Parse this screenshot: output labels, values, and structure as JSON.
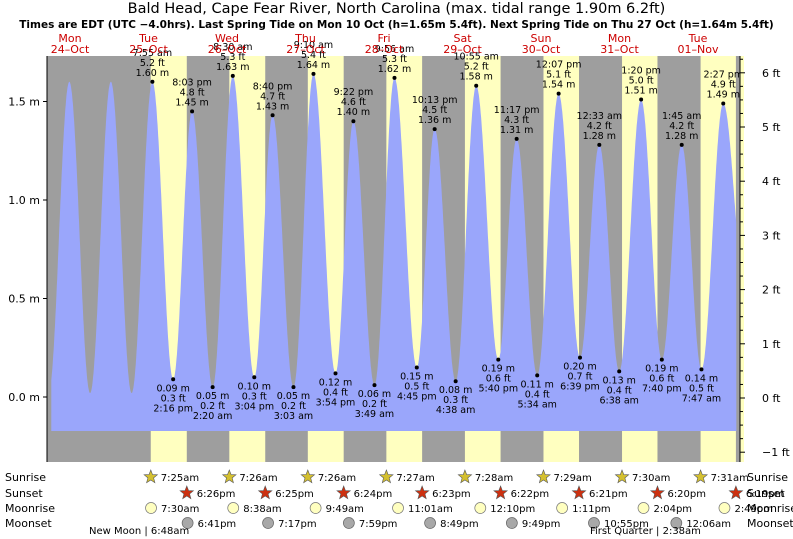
{
  "title": "Bald Head, Cape Fear River, North Carolina (max. tidal range 1.90m 6.2ft)",
  "subtitle": "Times are EDT (UTC −4.0hrs). Last Spring Tide on Mon 10 Oct (h=1.65m 5.4ft). Next Spring Tide on Thu 27 Oct (h=1.64m 5.4ft)",
  "colors": {
    "water": "#9aa6fb",
    "day": "#ffffc0",
    "night": "#9e9e9e",
    "day_header": "#cc0000",
    "sun_icon": "#d4c030",
    "sunset_icon": "#cc3010",
    "moonrise_icon": "#ffffc0",
    "moonset_icon": "#a8a8a8"
  },
  "chart_data": {
    "type": "area",
    "y_axis_left": {
      "unit": "m",
      "ylim": [
        -0.25,
        1.85
      ],
      "ticks": [
        "1.5 m",
        "1.0 m",
        "0.5 m",
        "0.0 m"
      ],
      "tick_values": [
        1.5,
        1.0,
        0.5,
        0.0
      ]
    },
    "y_axis_right": {
      "unit": "ft",
      "ticks": [
        "6 ft",
        "5 ft",
        "4 ft",
        "3 ft",
        "2 ft",
        "1 ft",
        "0 ft",
        "−1 ft"
      ],
      "tick_values": [
        6,
        5,
        4,
        3,
        2,
        1,
        0,
        -1
      ]
    },
    "days": [
      {
        "dow": "Mon",
        "date": "24–Oct"
      },
      {
        "dow": "Tue",
        "date": "25–Oct"
      },
      {
        "dow": "Wed",
        "date": "26–Oct"
      },
      {
        "dow": "Thu",
        "date": "27–Oct"
      },
      {
        "dow": "Fri",
        "date": "28–Oct"
      },
      {
        "dow": "Sat",
        "date": "29–Oct"
      },
      {
        "dow": "Sun",
        "date": "30–Oct"
      },
      {
        "dow": "Mon",
        "date": "31–Oct"
      },
      {
        "dow": "Tue",
        "date": "01–Nov"
      }
    ],
    "tides": [
      {
        "kind": "high",
        "time": "7:55 am",
        "ft": "5.2 ft",
        "m": "1.60 m",
        "h": 1.6
      },
      {
        "kind": "low",
        "time": "2:16 pm",
        "ft": "0.3 ft",
        "m": "0.09 m",
        "h": 0.09
      },
      {
        "kind": "high",
        "time": "8:03 pm",
        "ft": "4.8 ft",
        "m": "1.45 m",
        "h": 1.45
      },
      {
        "kind": "low",
        "time": "2:20 am",
        "ft": "0.2 ft",
        "m": "0.05 m",
        "h": 0.05
      },
      {
        "kind": "high",
        "time": "8:30 am",
        "ft": "5.3 ft",
        "m": "1.63 m",
        "h": 1.63
      },
      {
        "kind": "low",
        "time": "3:04 pm",
        "ft": "0.3 ft",
        "m": "0.10 m",
        "h": 0.1
      },
      {
        "kind": "high",
        "time": "8:40 pm",
        "ft": "4.7 ft",
        "m": "1.43 m",
        "h": 1.43
      },
      {
        "kind": "low",
        "time": "3:03 am",
        "ft": "0.2 ft",
        "m": "0.05 m",
        "h": 0.05
      },
      {
        "kind": "high",
        "time": "9:10 am",
        "ft": "5.4 ft",
        "m": "1.64 m",
        "h": 1.64
      },
      {
        "kind": "low",
        "time": "3:54 pm",
        "ft": "0.4 ft",
        "m": "0.12 m",
        "h": 0.12
      },
      {
        "kind": "high",
        "time": "9:22 pm",
        "ft": "4.6 ft",
        "m": "1.40 m",
        "h": 1.4
      },
      {
        "kind": "low",
        "time": "3:49 am",
        "ft": "0.2 ft",
        "m": "0.06 m",
        "h": 0.06
      },
      {
        "kind": "high",
        "time": "9:56 am",
        "ft": "5.3 ft",
        "m": "1.62 m",
        "h": 1.62
      },
      {
        "kind": "low",
        "time": "4:45 pm",
        "ft": "0.5 ft",
        "m": "0.15 m",
        "h": 0.15
      },
      {
        "kind": "high",
        "time": "10:13 pm",
        "ft": "4.5 ft",
        "m": "1.36 m",
        "h": 1.36
      },
      {
        "kind": "low",
        "time": "4:38 am",
        "ft": "0.3 ft",
        "m": "0.08 m",
        "h": 0.08
      },
      {
        "kind": "high",
        "time": "10:55 am",
        "ft": "5.2 ft",
        "m": "1.58 m",
        "h": 1.58
      },
      {
        "kind": "low",
        "time": "5:40 pm",
        "ft": "0.6 ft",
        "m": "0.19 m",
        "h": 0.19
      },
      {
        "kind": "high",
        "time": "11:17 pm",
        "ft": "4.3 ft",
        "m": "1.31 m",
        "h": 1.31
      },
      {
        "kind": "low",
        "time": "5:34 am",
        "ft": "0.4 ft",
        "m": "0.11 m",
        "h": 0.11
      },
      {
        "kind": "high",
        "time": "12:07 pm",
        "ft": "5.1 ft",
        "m": "1.54 m",
        "h": 1.54
      },
      {
        "kind": "low",
        "time": "6:39 pm",
        "ft": "0.7 ft",
        "m": "0.20 m",
        "h": 0.2
      },
      {
        "kind": "high",
        "time": "12:33 am",
        "ft": "4.2 ft",
        "m": "1.28 m",
        "h": 1.28
      },
      {
        "kind": "low",
        "time": "6:38 am",
        "ft": "0.4 ft",
        "m": "0.13 m",
        "h": 0.13
      },
      {
        "kind": "high",
        "time": "1:20 pm",
        "ft": "5.0 ft",
        "m": "1.51 m",
        "h": 1.51
      },
      {
        "kind": "low",
        "time": "7:40 pm",
        "ft": "0.6 ft",
        "m": "0.19 m",
        "h": 0.19
      },
      {
        "kind": "high",
        "time": "1:45 am",
        "ft": "4.2 ft",
        "m": "1.28 m",
        "h": 1.28
      },
      {
        "kind": "low",
        "time": "7:47 am",
        "ft": "0.5 ft",
        "m": "0.14 m",
        "h": 0.14
      },
      {
        "kind": "high",
        "time": "2:27 pm",
        "ft": "4.9 ft",
        "m": "1.49 m",
        "h": 1.49
      }
    ],
    "daylight": [
      {
        "sunrise": "7:25am",
        "sunset": "6:26pm"
      },
      {
        "sunrise": "7:26am",
        "sunset": "6:25pm"
      },
      {
        "sunrise": "7:26am",
        "sunset": "6:24pm"
      },
      {
        "sunrise": "7:27am",
        "sunset": "6:23pm"
      },
      {
        "sunrise": "7:28am",
        "sunset": "6:22pm"
      },
      {
        "sunrise": "7:29am",
        "sunset": "6:21pm"
      },
      {
        "sunrise": "7:30am",
        "sunset": "6:20pm"
      },
      {
        "sunrise": "7:31am",
        "sunset": "6:19pm"
      }
    ],
    "moonrise": [
      "7:30am",
      "8:38am",
      "9:49am",
      "11:01am",
      "12:10pm",
      "1:11pm",
      "2:04pm",
      "2:49pm"
    ],
    "moonset": [
      "6:41pm",
      "7:17pm",
      "7:59pm",
      "8:49pm",
      "9:49pm",
      "10:55pm",
      "12:06am"
    ],
    "moon_phases": [
      "New Moon | 6:48am",
      "First Quarter | 2:38am"
    ]
  },
  "legend_rows": [
    "Sunrise",
    "Sunset",
    "Moonrise",
    "Moonset"
  ]
}
